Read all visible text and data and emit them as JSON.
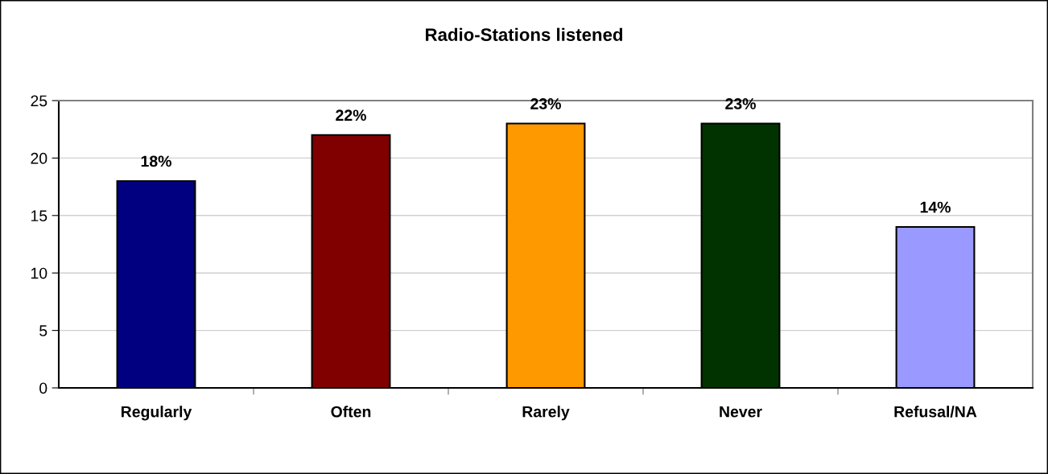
{
  "chart_data": {
    "type": "bar",
    "title": "Radio-Stations listened",
    "categories": [
      "Regularly",
      "Often",
      "Rarely",
      "Never",
      "Refusal/NA"
    ],
    "values": [
      18,
      22,
      23,
      23,
      14
    ],
    "colors": [
      "#000080",
      "#800000",
      "#ff9900",
      "#003300",
      "#9999ff"
    ],
    "value_labels": [
      "18%",
      "22%",
      "23%",
      "23%",
      "14%"
    ],
    "ylim": [
      0,
      25
    ],
    "yticks": [
      0,
      5,
      10,
      15,
      20,
      25
    ],
    "grid": "y",
    "legend": false
  }
}
